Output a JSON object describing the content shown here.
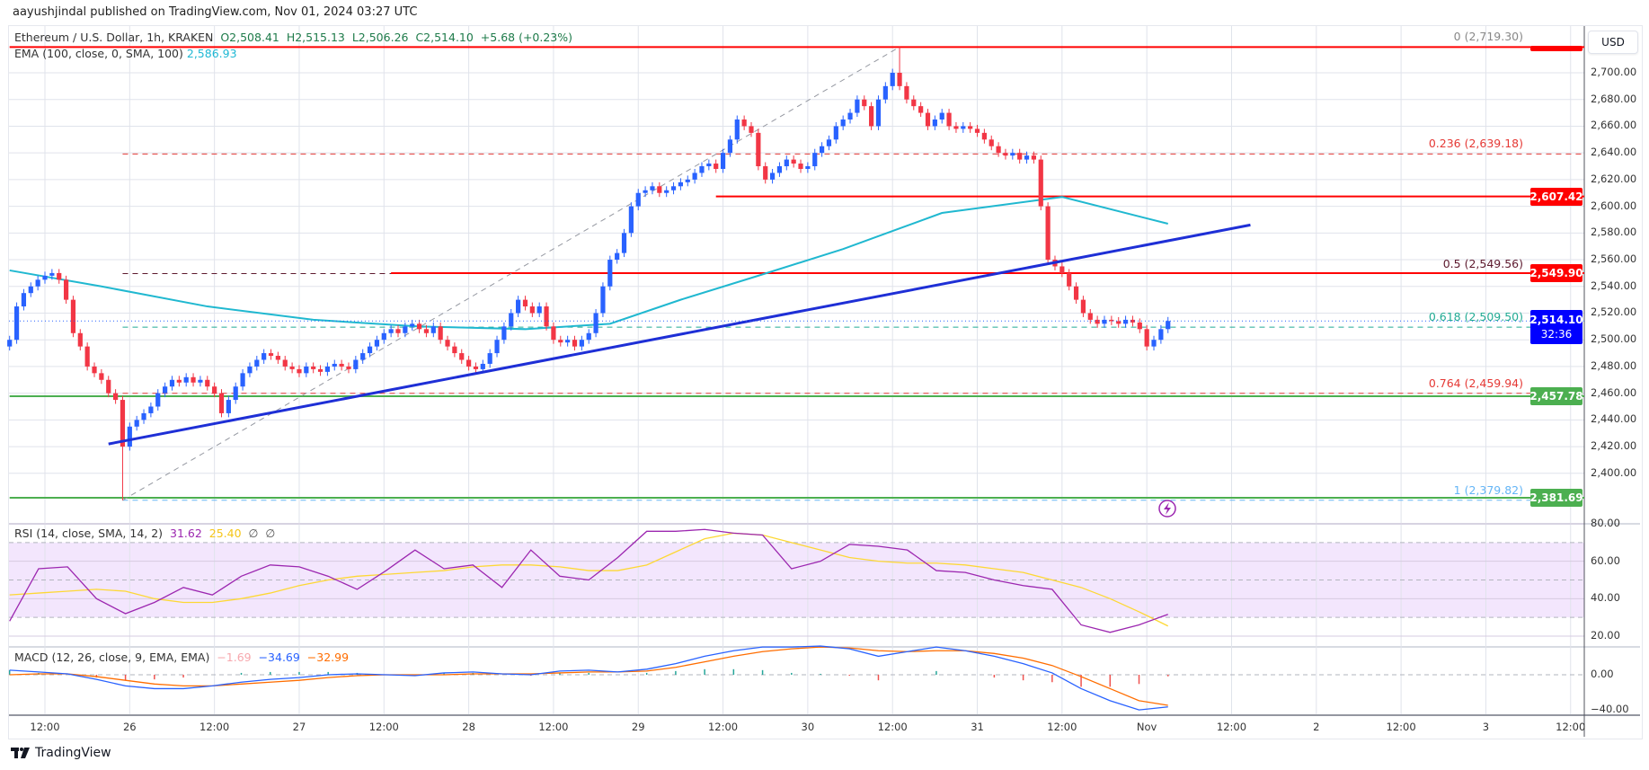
{
  "header": {
    "published": "aayushjindal published on TradingView.com, Nov 01, 2024 03:27 UTC"
  },
  "legend": {
    "symbol": "Ethereum / U.S. Dollar, 1h, KRAKEN",
    "open": "O2,508.41",
    "high": "H2,515.13",
    "low": "L2,506.26",
    "close": "C2,514.10",
    "change": "+5.68 (+0.23%)",
    "ema_label": "EMA (100, close, 0, SMA, 100)",
    "ema_value": "2,586.93",
    "rsi_label": "RSI (14, close, SMA, 14, 2)",
    "rsi_value": "31.62",
    "rsi_signal": "25.40",
    "rsi_extra1": "∅",
    "rsi_extra2": "∅",
    "macd_label": "MACD (12, 26, close, 9, EMA, EMA)",
    "macd_hist": "−1.69",
    "macd_value": "−34.69",
    "macd_signal": "−32.99"
  },
  "currency_button": "USD",
  "brand": "TradingView",
  "colors": {
    "up": "#2962ff",
    "down": "#f23645",
    "ema": "#20b8d0",
    "trend": "#1e2fd6",
    "resistance": "#ff0000",
    "support": "#4caf50",
    "rsi": "#9c27b0",
    "rsi_signal": "#fdd835",
    "macd": "#2962ff",
    "macd_signal": "#ff6d00"
  },
  "chart_data": [
    {
      "type": "candlestick",
      "title": "Ethereum / U.S. Dollar, 1h, KRAKEN",
      "interval": "1h",
      "first_candle": "2024-10-25 07:00",
      "closes": [
        2500,
        2525,
        2535,
        2540,
        2545,
        2548,
        2550,
        2545,
        2530,
        2505,
        2495,
        2480,
        2475,
        2470,
        2460,
        2455,
        2420,
        2435,
        2440,
        2445,
        2450,
        2460,
        2465,
        2470,
        2468,
        2472,
        2468,
        2470,
        2465,
        2460,
        2445,
        2455,
        2465,
        2475,
        2480,
        2485,
        2490,
        2488,
        2485,
        2480,
        2478,
        2475,
        2480,
        2478,
        2476,
        2480,
        2482,
        2480,
        2478,
        2485,
        2490,
        2495,
        2500,
        2505,
        2508,
        2505,
        2510,
        2512,
        2508,
        2505,
        2510,
        2500,
        2495,
        2490,
        2485,
        2480,
        2478,
        2482,
        2490,
        2500,
        2510,
        2520,
        2530,
        2525,
        2520,
        2525,
        2510,
        2500,
        2498,
        2500,
        2495,
        2500,
        2505,
        2520,
        2540,
        2560,
        2565,
        2580,
        2600,
        2610,
        2612,
        2615,
        2610,
        2612,
        2615,
        2618,
        2620,
        2625,
        2630,
        2632,
        2628,
        2640,
        2650,
        2665,
        2660,
        2655,
        2630,
        2620,
        2625,
        2630,
        2635,
        2632,
        2628,
        2630,
        2640,
        2645,
        2650,
        2660,
        2665,
        2670,
        2680,
        2675,
        2660,
        2680,
        2690,
        2700,
        2690,
        2680,
        2675,
        2670,
        2660,
        2665,
        2670,
        2660,
        2658,
        2660,
        2658,
        2655,
        2650,
        2645,
        2640,
        2638,
        2640,
        2635,
        2638,
        2635,
        2600,
        2560,
        2555,
        2550,
        2540,
        2530,
        2520,
        2515,
        2512,
        2515,
        2514,
        2512,
        2515,
        2513,
        2508,
        2495,
        2500,
        2508,
        2514.1
      ],
      "extremes": {
        "swing_low": {
          "time": "2024-10-25 23:00",
          "price": 2379.82
        },
        "swing_high": {
          "time": "2024-10-30 13:00",
          "price": 2719.3
        }
      },
      "ema100": [
        [
          "2024-10-25 07:00",
          2552
        ],
        [
          "2024-10-25 20:00",
          2540
        ],
        [
          "2024-10-26 11:00",
          2525
        ],
        [
          "2024-10-27 02:00",
          2515
        ],
        [
          "2024-10-27 17:00",
          2510
        ],
        [
          "2024-10-28 08:00",
          2508
        ],
        [
          "2024-10-28 20:00",
          2512
        ],
        [
          "2024-10-29 06:00",
          2530
        ],
        [
          "2024-10-29 17:00",
          2548
        ],
        [
          "2024-10-30 05:00",
          2568
        ],
        [
          "2024-10-30 19:00",
          2595
        ],
        [
          "2024-10-31 12:00",
          2607
        ],
        [
          "2024-11-01 03:00",
          2586.93
        ]
      ],
      "trendline": [
        [
          "2024-10-25 21:00",
          2422
        ],
        [
          "2024-11-01 14:40",
          2586
        ]
      ],
      "horizontal_levels": [
        {
          "price": 2719.3,
          "style": "solid",
          "color": "#ff0000",
          "from": "2024-10-25 07:00",
          "tag": ""
        },
        {
          "price": 2607.42,
          "style": "solid",
          "color": "#ff0000",
          "from": "2024-10-29 11:00",
          "tag": "2,607.42"
        },
        {
          "price": 2549.9,
          "style": "solid",
          "color": "#ff0000",
          "from": "2024-10-27 13:00",
          "tag": "2,549.90"
        },
        {
          "price": 2457.78,
          "style": "solid",
          "color": "#4caf50",
          "from": "2024-10-25 07:00",
          "tag": "2,457.78"
        },
        {
          "price": 2381.69,
          "style": "solid",
          "color": "#4caf50",
          "from": "2024-10-25 07:00",
          "tag": "2,381.69"
        }
      ],
      "fibonacci": [
        {
          "level": "0 (2,719.30)",
          "price": 2719.3,
          "color": "#888888"
        },
        {
          "level": "0.236 (2,639.18)",
          "price": 2639.18,
          "color": "#e53935"
        },
        {
          "level": "0.5 (2,549.56)",
          "price": 2549.56,
          "color": "#5d1a2e"
        },
        {
          "level": "0.618 (2,509.50)",
          "price": 2509.5,
          "color": "#22ab94"
        },
        {
          "level": "0.764 (2,459.94)",
          "price": 2459.94,
          "color": "#e53935"
        },
        {
          "level": "1 (2,379.82)",
          "price": 2379.82,
          "color": "#64b5f6"
        }
      ],
      "last_price": {
        "value": "2,514.10",
        "countdown": "32:36",
        "price": 2514.1
      },
      "y_ticks": [
        "2,700.00",
        "2,680.00",
        "2,660.00",
        "2,640.00",
        "2,620.00",
        "2,600.00",
        "2,580.00",
        "2,560.00",
        "2,540.00",
        "2,520.00",
        "2,500.00",
        "2,480.00",
        "2,460.00",
        "2,440.00",
        "2,420.00",
        "2,400.00"
      ],
      "y_tick_values": [
        2700,
        2680,
        2660,
        2640,
        2620,
        2600,
        2580,
        2560,
        2540,
        2520,
        2500,
        2480,
        2460,
        2440,
        2420,
        2400
      ],
      "x_ticks": [
        "12:00",
        "26",
        "12:00",
        "27",
        "12:00",
        "28",
        "12:00",
        "29",
        "12:00",
        "30",
        "12:00",
        "31",
        "12:00",
        "Nov",
        "12:00",
        "2",
        "12:00",
        "3",
        "12:00"
      ],
      "x_tick_times": [
        "2024-10-25 12:00",
        "2024-10-26 00:00",
        "2024-10-26 12:00",
        "2024-10-27 00:00",
        "2024-10-27 12:00",
        "2024-10-28 00:00",
        "2024-10-28 12:00",
        "2024-10-29 00:00",
        "2024-10-29 12:00",
        "2024-10-30 00:00",
        "2024-10-30 12:00",
        "2024-10-31 00:00",
        "2024-10-31 12:00",
        "2024-11-01 00:00",
        "2024-11-01 12:00",
        "2024-11-02 00:00",
        "2024-11-02 12:00",
        "2024-11-03 00:00",
        "2024-11-03 12:00"
      ],
      "grid": true
    },
    {
      "type": "line",
      "title": "RSI (14, close, SMA, 14, 2)",
      "rsi": [
        28,
        56,
        57,
        40,
        32,
        38,
        46,
        42,
        52,
        58,
        57,
        52,
        45,
        55,
        66,
        56,
        58,
        46,
        66,
        52,
        50,
        62,
        76,
        76,
        77,
        75,
        74,
        56,
        60,
        69,
        68,
        66,
        55,
        54,
        50,
        47,
        45,
        26,
        22,
        26,
        31.62
      ],
      "signal": [
        42,
        43,
        44,
        45,
        44,
        40,
        38,
        38,
        40,
        43,
        47,
        50,
        52,
        53,
        54,
        55,
        57,
        58,
        58,
        57,
        55,
        55,
        58,
        65,
        72,
        75,
        74,
        70,
        66,
        62,
        60,
        59,
        59,
        58,
        56,
        54,
        50,
        46,
        40,
        33,
        25.4
      ],
      "bands": [
        70,
        50,
        30
      ],
      "y_ticks": [
        "80.00",
        "60.00",
        "40.00",
        "20.00"
      ],
      "y_tick_values": [
        80,
        60,
        40,
        20
      ]
    },
    {
      "type": "line",
      "title": "MACD (12, 26, close, 9, EMA, EMA)",
      "macd": [
        5,
        3,
        1,
        -5,
        -12,
        -15,
        -15,
        -12,
        -8,
        -5,
        -3,
        0,
        1,
        0,
        -1,
        2,
        3,
        1,
        0,
        4,
        5,
        3,
        6,
        12,
        20,
        26,
        30,
        30,
        31,
        28,
        20,
        25,
        30,
        26,
        20,
        12,
        2,
        -15,
        -28,
        -38,
        -34.69
      ],
      "signal": [
        0,
        1,
        1,
        -2,
        -6,
        -10,
        -12,
        -12,
        -10,
        -8,
        -6,
        -3,
        -1,
        0,
        0,
        0,
        1,
        1,
        1,
        2,
        3,
        3,
        4,
        8,
        14,
        20,
        25,
        28,
        30,
        29,
        26,
        25,
        26,
        26,
        23,
        18,
        10,
        -2,
        -15,
        -28,
        -32.99
      ],
      "y_ticks": [
        "0.00",
        "−40.00"
      ],
      "y_tick_values": [
        0,
        -40
      ]
    }
  ]
}
